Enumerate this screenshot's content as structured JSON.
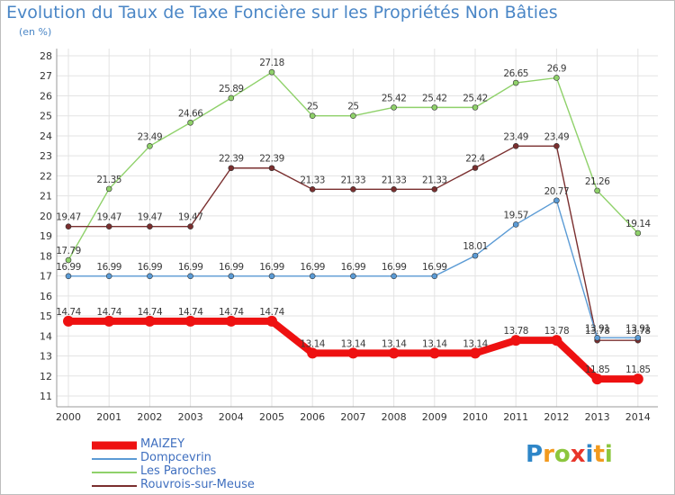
{
  "chart_data": {
    "type": "line",
    "title": "Evolution du Taux de Taxe Foncière sur les Propriétés Non Bâties",
    "subtitle": "(en %)",
    "x": [
      "2000",
      "2001",
      "2002",
      "2003",
      "2004",
      "2005",
      "2006",
      "2007",
      "2008",
      "2009",
      "2010",
      "2011",
      "2012",
      "2013",
      "2014"
    ],
    "ylim": [
      11,
      28
    ],
    "yticks": [
      "11",
      "12",
      "13",
      "14",
      "15",
      "16",
      "17",
      "18",
      "19",
      "20",
      "21",
      "22",
      "23",
      "24",
      "25",
      "26",
      "27",
      "28"
    ],
    "grid": true,
    "legend_position": "bottom-left",
    "series": [
      {
        "name": "MAIZEY",
        "color": "#ee1111",
        "values": [
          14.74,
          14.74,
          14.74,
          14.74,
          14.74,
          14.74,
          13.14,
          13.14,
          13.14,
          13.14,
          13.14,
          13.78,
          13.78,
          11.85,
          11.85
        ],
        "labels": [
          "14.74",
          "14.74",
          "14.74",
          "14.74",
          "14.74",
          "14.74",
          "13.14",
          "13.14",
          "13.14",
          "13.14",
          "13.14",
          "13.78",
          "13.78",
          "11.85",
          "11.85"
        ]
      },
      {
        "name": "Dompcevrin",
        "color": "#5b9bd5",
        "values": [
          16.99,
          16.99,
          16.99,
          16.99,
          16.99,
          16.99,
          16.99,
          16.99,
          16.99,
          16.99,
          18.01,
          19.57,
          20.77,
          13.91,
          13.91
        ],
        "labels": [
          "16.99",
          "16.99",
          "16.99",
          "16.99",
          "16.99",
          "16.99",
          "16.99",
          "16.99",
          "16.99",
          "16.99",
          "18.01",
          "19.57",
          "20.77",
          "13.91",
          "13.91"
        ]
      },
      {
        "name": "Les Paroches",
        "color": "#8fd16a",
        "values": [
          17.79,
          21.35,
          23.49,
          24.66,
          25.89,
          27.18,
          25,
          25,
          25.42,
          25.42,
          25.42,
          26.65,
          26.9,
          21.26,
          19.14
        ],
        "labels": [
          "17.79",
          "21.35",
          "23.49",
          "24.66",
          "25.89",
          "27.18",
          "25",
          "25",
          "25.42",
          "25.42",
          "25.42",
          "26.65",
          "26.9",
          "21.26",
          "19.14"
        ]
      },
      {
        "name": "Rouvrois-sur-Meuse",
        "color": "#7a2f2f",
        "values": [
          19.47,
          19.47,
          19.47,
          19.47,
          22.39,
          22.39,
          21.33,
          21.33,
          21.33,
          21.33,
          22.4,
          23.49,
          23.49,
          13.78,
          13.78
        ],
        "labels": [
          "19.47",
          "19.47",
          "19.47",
          "19.47",
          "22.39",
          "22.39",
          "21.33",
          "21.33",
          "21.33",
          "21.33",
          "22.4",
          "23.49",
          "23.49",
          "13.78",
          "13.78"
        ]
      }
    ]
  },
  "brand": {
    "letters": [
      "P",
      "r",
      "o",
      "x",
      "i",
      "t",
      "i"
    ],
    "colors": [
      "#2e86c8",
      "#f29a1e",
      "#8cc63e",
      "#e8352a",
      "#2e86c8",
      "#f29a1e",
      "#8cc63e"
    ]
  }
}
